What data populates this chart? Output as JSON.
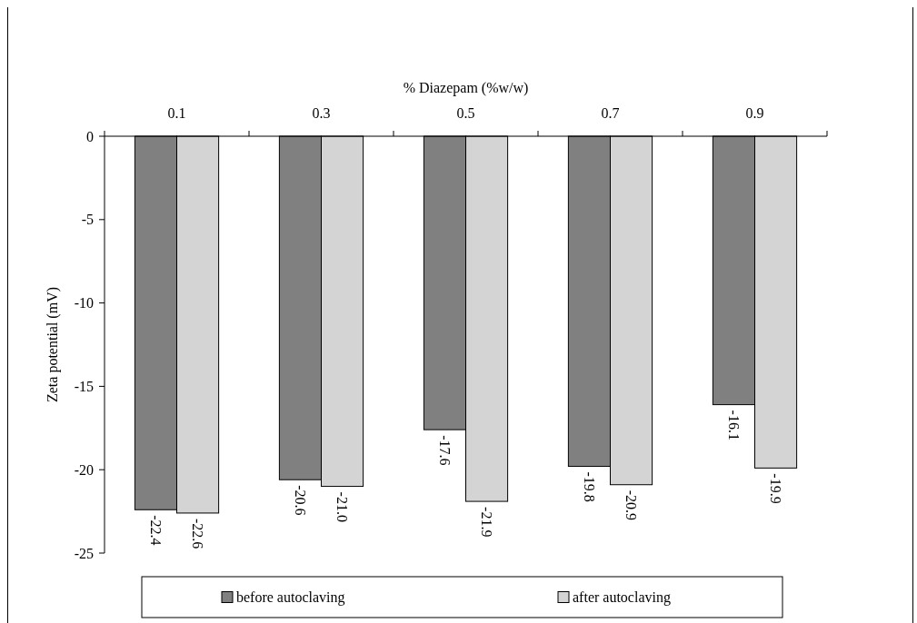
{
  "chart_data": {
    "type": "bar",
    "xlabel": "% Diazepam (%w/w)",
    "ylabel": "Zeta potential (mV)",
    "categories": [
      "0.1",
      "0.3",
      "0.5",
      "0.7",
      "0.9"
    ],
    "series": [
      {
        "name": "before autoclaving",
        "color": "#808080",
        "values": [
          -22.4,
          -20.6,
          -17.6,
          -19.8,
          -16.1
        ],
        "value_labels": [
          "-22.4",
          "-20.6",
          "-17.6",
          "-19.8",
          "-16.1"
        ]
      },
      {
        "name": "after autoclaving",
        "color": "#d4d4d4",
        "values": [
          -22.6,
          -21.0,
          -21.9,
          -20.9,
          -19.9
        ],
        "value_labels": [
          "-22.6",
          "-21.0",
          "-21.9",
          "-20.9",
          "-19.9"
        ]
      }
    ],
    "ylim": [
      -25,
      0
    ],
    "yticks": [
      -25,
      -20,
      -15,
      -10,
      -5,
      0
    ],
    "legend": "bottom",
    "grid": false
  }
}
